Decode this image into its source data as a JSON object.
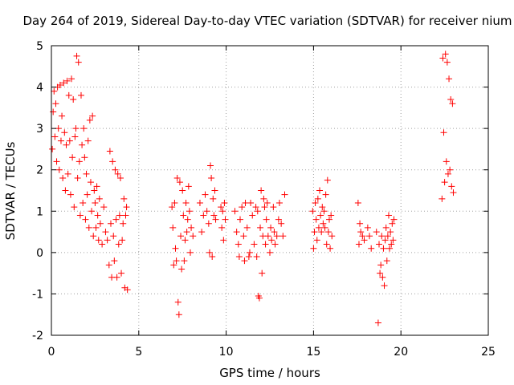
{
  "chart_data": {
    "type": "scatter",
    "title": "Day 264 of 2019, Sidereal Day-to-day VTEC variation (SDTVAR) for receiver nium",
    "xlabel": "GPS time / hours",
    "ylabel": "SDTVAR / TECUs",
    "xlim": [
      0,
      25
    ],
    "ylim": [
      -2,
      5
    ],
    "xticks": [
      "0",
      "5",
      "10",
      "15",
      "20",
      "25"
    ],
    "yticks": [
      "-2",
      "-1",
      "0",
      "1",
      "2",
      "3",
      "4",
      "5"
    ],
    "xtick_values": [
      0,
      5,
      10,
      15,
      20,
      25
    ],
    "ytick_values": [
      -2,
      -1,
      0,
      1,
      2,
      3,
      4,
      5
    ],
    "grid": true,
    "marker": "+",
    "color": "#ff0000",
    "series": [
      {
        "name": "SDTVAR",
        "points": [
          [
            0.05,
            2.5
          ],
          [
            0.1,
            3.4
          ],
          [
            0.15,
            3.9
          ],
          [
            0.2,
            2.8
          ],
          [
            0.25,
            3.6
          ],
          [
            0.3,
            2.2
          ],
          [
            0.35,
            4.0
          ],
          [
            0.4,
            3.0
          ],
          [
            0.45,
            2.0
          ],
          [
            0.5,
            4.05
          ],
          [
            0.55,
            2.7
          ],
          [
            0.6,
            3.3
          ],
          [
            0.65,
            1.8
          ],
          [
            0.7,
            4.1
          ],
          [
            0.75,
            2.9
          ],
          [
            0.8,
            1.5
          ],
          [
            0.85,
            2.6
          ],
          [
            0.9,
            4.15
          ],
          [
            0.95,
            1.9
          ],
          [
            1.0,
            3.8
          ],
          [
            1.05,
            2.7
          ],
          [
            1.1,
            1.4
          ],
          [
            1.15,
            4.2
          ],
          [
            1.2,
            2.3
          ],
          [
            1.25,
            3.7
          ],
          [
            1.3,
            1.1
          ],
          [
            1.35,
            2.8
          ],
          [
            1.4,
            3.0
          ],
          [
            1.45,
            4.75
          ],
          [
            1.5,
            1.8
          ],
          [
            1.55,
            4.6
          ],
          [
            1.6,
            2.2
          ],
          [
            1.65,
            0.9
          ],
          [
            1.7,
            3.8
          ],
          [
            1.75,
            2.6
          ],
          [
            1.8,
            1.2
          ],
          [
            1.85,
            3.0
          ],
          [
            1.9,
            2.3
          ],
          [
            1.95,
            0.8
          ],
          [
            2.0,
            1.9
          ],
          [
            2.05,
            1.4
          ],
          [
            2.1,
            2.7
          ],
          [
            2.15,
            0.6
          ],
          [
            2.2,
            3.2
          ],
          [
            2.25,
            1.7
          ],
          [
            2.3,
            1.0
          ],
          [
            2.35,
            3.3
          ],
          [
            2.4,
            0.4
          ],
          [
            2.45,
            1.5
          ],
          [
            2.5,
            1.2
          ],
          [
            2.55,
            0.6
          ],
          [
            2.6,
            1.6
          ],
          [
            2.65,
            0.9
          ],
          [
            2.7,
            0.3
          ],
          [
            2.75,
            1.3
          ],
          [
            2.8,
            0.7
          ],
          [
            2.9,
            0.2
          ],
          [
            3.0,
            1.1
          ],
          [
            3.1,
            0.5
          ],
          [
            3.2,
            0.3
          ],
          [
            3.3,
            -0.3
          ],
          [
            3.35,
            2.45
          ],
          [
            3.4,
            0.7
          ],
          [
            3.45,
            -0.6
          ],
          [
            3.5,
            2.2
          ],
          [
            3.55,
            0.4
          ],
          [
            3.6,
            -0.2
          ],
          [
            3.65,
            2.0
          ],
          [
            3.7,
            0.8
          ],
          [
            3.75,
            -0.6
          ],
          [
            3.8,
            1.9
          ],
          [
            3.85,
            0.2
          ],
          [
            3.9,
            0.9
          ],
          [
            3.95,
            1.8
          ],
          [
            4.0,
            -0.5
          ],
          [
            4.05,
            0.3
          ],
          [
            4.1,
            0.7
          ],
          [
            4.15,
            1.3
          ],
          [
            4.2,
            -0.85
          ],
          [
            4.25,
            0.9
          ],
          [
            4.3,
            1.1
          ],
          [
            4.35,
            -0.9
          ],
          [
            6.9,
            1.1
          ],
          [
            6.95,
            0.6
          ],
          [
            7.0,
            -0.3
          ],
          [
            7.05,
            1.2
          ],
          [
            7.1,
            0.1
          ],
          [
            7.15,
            -0.2
          ],
          [
            7.2,
            1.8
          ],
          [
            7.25,
            -1.2
          ],
          [
            7.3,
            -1.5
          ],
          [
            7.35,
            1.7
          ],
          [
            7.4,
            0.4
          ],
          [
            7.45,
            -0.4
          ],
          [
            7.5,
            1.5
          ],
          [
            7.55,
            0.9
          ],
          [
            7.6,
            -0.2
          ],
          [
            7.65,
            0.3
          ],
          [
            7.7,
            1.2
          ],
          [
            7.75,
            0.5
          ],
          [
            7.8,
            0.8
          ],
          [
            7.85,
            1.6
          ],
          [
            7.9,
            1.0
          ],
          [
            7.95,
            0.0
          ],
          [
            8.0,
            0.6
          ],
          [
            8.1,
            0.4
          ],
          [
            8.5,
            1.2
          ],
          [
            8.6,
            0.5
          ],
          [
            8.7,
            0.9
          ],
          [
            8.8,
            1.4
          ],
          [
            8.9,
            1.0
          ],
          [
            9.0,
            0.7
          ],
          [
            9.05,
            0.0
          ],
          [
            9.1,
            2.1
          ],
          [
            9.15,
            1.8
          ],
          [
            9.2,
            -0.1
          ],
          [
            9.25,
            1.3
          ],
          [
            9.3,
            0.9
          ],
          [
            9.35,
            1.5
          ],
          [
            9.4,
            0.8
          ],
          [
            9.7,
            1.1
          ],
          [
            9.75,
            0.6
          ],
          [
            9.8,
            1.0
          ],
          [
            9.85,
            0.3
          ],
          [
            9.9,
            1.2
          ],
          [
            9.95,
            0.8
          ],
          [
            10.5,
            1.0
          ],
          [
            10.6,
            0.5
          ],
          [
            10.7,
            0.2
          ],
          [
            10.75,
            -0.1
          ],
          [
            10.8,
            0.8
          ],
          [
            10.9,
            1.1
          ],
          [
            11.0,
            0.4
          ],
          [
            11.05,
            -0.2
          ],
          [
            11.1,
            1.2
          ],
          [
            11.2,
            0.6
          ],
          [
            11.3,
            -0.1
          ],
          [
            11.35,
            0.0
          ],
          [
            11.4,
            1.2
          ],
          [
            11.5,
            0.9
          ],
          [
            11.6,
            0.2
          ],
          [
            11.7,
            1.1
          ],
          [
            11.75,
            -0.1
          ],
          [
            11.8,
            1.0
          ],
          [
            11.85,
            -1.05
          ],
          [
            11.9,
            -1.1
          ],
          [
            11.95,
            0.6
          ],
          [
            12.0,
            1.5
          ],
          [
            12.05,
            -0.5
          ],
          [
            12.1,
            0.4
          ],
          [
            12.15,
            1.3
          ],
          [
            12.2,
            1.1
          ],
          [
            12.25,
            0.2
          ],
          [
            12.3,
            0.8
          ],
          [
            12.35,
            1.2
          ],
          [
            12.4,
            0.4
          ],
          [
            12.5,
            0.0
          ],
          [
            12.55,
            0.6
          ],
          [
            12.6,
            0.3
          ],
          [
            12.7,
            1.1
          ],
          [
            12.75,
            0.5
          ],
          [
            12.8,
            0.2
          ],
          [
            12.9,
            0.4
          ],
          [
            13.0,
            0.8
          ],
          [
            13.05,
            1.2
          ],
          [
            13.15,
            0.7
          ],
          [
            13.25,
            0.4
          ],
          [
            13.35,
            1.4
          ],
          [
            14.95,
            1.0
          ],
          [
            15.0,
            0.1
          ],
          [
            15.05,
            0.5
          ],
          [
            15.1,
            1.2
          ],
          [
            15.15,
            0.8
          ],
          [
            15.2,
            0.3
          ],
          [
            15.25,
            1.3
          ],
          [
            15.3,
            0.6
          ],
          [
            15.35,
            1.5
          ],
          [
            15.4,
            0.9
          ],
          [
            15.45,
            0.5
          ],
          [
            15.5,
            1.1
          ],
          [
            15.55,
            0.7
          ],
          [
            15.6,
            1.0
          ],
          [
            15.65,
            0.6
          ],
          [
            15.7,
            1.4
          ],
          [
            15.75,
            0.2
          ],
          [
            15.8,
            1.75
          ],
          [
            15.85,
            0.5
          ],
          [
            15.9,
            0.8
          ],
          [
            15.95,
            0.1
          ],
          [
            16.0,
            0.9
          ],
          [
            16.05,
            0.4
          ],
          [
            17.55,
            1.2
          ],
          [
            17.6,
            0.2
          ],
          [
            17.65,
            0.7
          ],
          [
            17.7,
            0.5
          ],
          [
            17.8,
            0.4
          ],
          [
            17.9,
            0.3
          ],
          [
            18.1,
            0.6
          ],
          [
            18.2,
            0.4
          ],
          [
            18.3,
            0.1
          ],
          [
            18.6,
            0.5
          ],
          [
            18.7,
            -1.7
          ],
          [
            18.75,
            0.2
          ],
          [
            18.8,
            -0.5
          ],
          [
            18.85,
            -0.3
          ],
          [
            18.9,
            0.4
          ],
          [
            18.95,
            -0.6
          ],
          [
            19.0,
            0.1
          ],
          [
            19.05,
            -0.8
          ],
          [
            19.1,
            0.3
          ],
          [
            19.15,
            0.6
          ],
          [
            19.2,
            -0.2
          ],
          [
            19.25,
            0.4
          ],
          [
            19.3,
            0.9
          ],
          [
            19.35,
            0.1
          ],
          [
            19.4,
            0.5
          ],
          [
            19.45,
            0.2
          ],
          [
            19.5,
            0.7
          ],
          [
            19.55,
            0.3
          ],
          [
            19.6,
            0.8
          ],
          [
            22.35,
            1.3
          ],
          [
            22.4,
            4.7
          ],
          [
            22.45,
            2.9
          ],
          [
            22.5,
            1.7
          ],
          [
            22.55,
            4.8
          ],
          [
            22.6,
            2.2
          ],
          [
            22.65,
            4.6
          ],
          [
            22.7,
            1.9
          ],
          [
            22.75,
            4.2
          ],
          [
            22.8,
            2.0
          ],
          [
            22.85,
            3.7
          ],
          [
            22.9,
            1.6
          ],
          [
            22.95,
            3.6
          ],
          [
            23.0,
            1.45
          ]
        ]
      }
    ]
  }
}
